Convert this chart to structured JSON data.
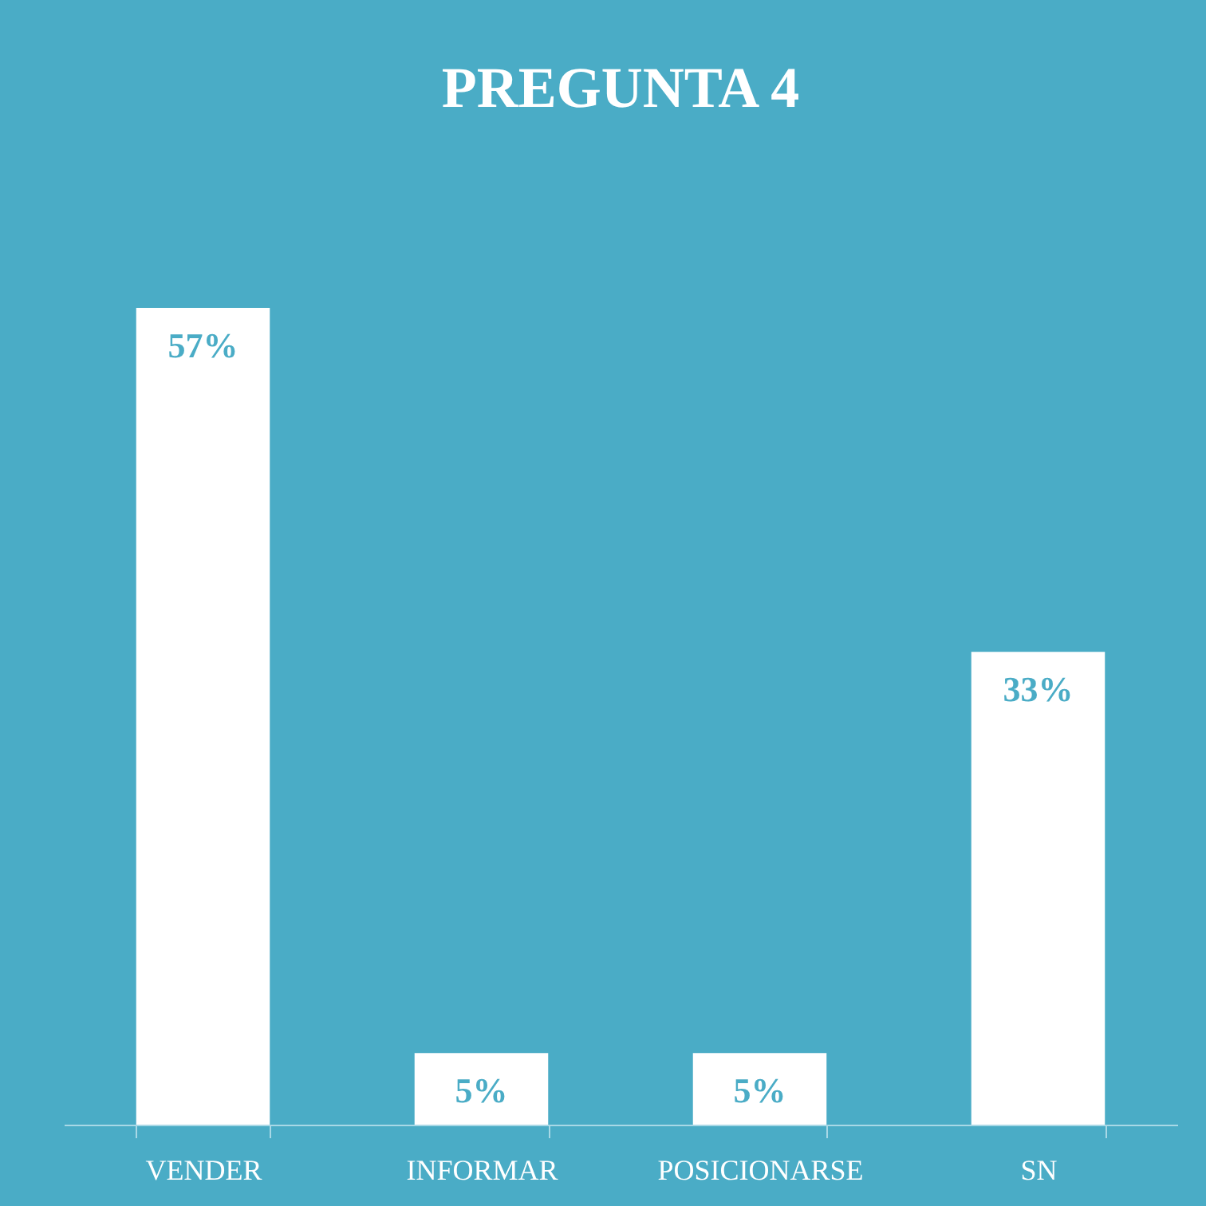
{
  "chart_data": {
    "type": "bar",
    "title": "PREGUNTA 4",
    "categories": [
      "VENDER",
      "INFORMAR",
      "POSICIONARSE",
      "SN"
    ],
    "values": [
      57,
      5,
      5,
      33
    ],
    "value_labels": [
      "57%",
      "5%",
      "5%",
      "33%"
    ],
    "color": "#ffffff"
  }
}
